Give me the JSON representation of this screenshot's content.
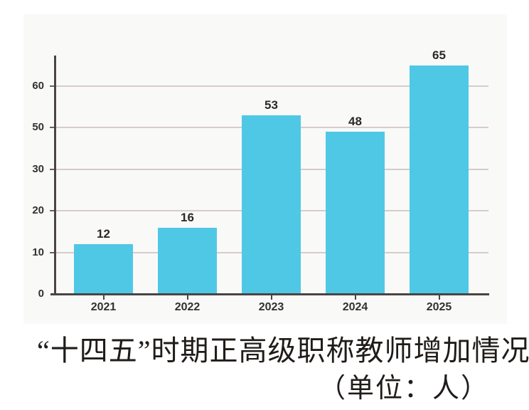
{
  "figure": {
    "kind": "printed bar chart with caption"
  },
  "style": {
    "panel_bg": "#f9f9f8",
    "bar_color": "#4fc8e6",
    "grid_color": "#d6cccb",
    "axis_color": "#4b4443",
    "tick_color": "#6b625f",
    "text_color": "#343030"
  },
  "chart_data": {
    "type": "bar",
    "categories": [
      "2021",
      "2022",
      "2023",
      "2024",
      "2025"
    ],
    "values": [
      12,
      16,
      53,
      48,
      65
    ],
    "y_tick_labels": [
      "0",
      "10",
      "20",
      "30",
      "50",
      "60"
    ],
    "y_axis_note": "printed axis skips 40; gridlines evenly spaced",
    "grid": true,
    "legend": "none",
    "title": "“十四五”时期正高级职称教师增加情况",
    "unit_label": "（单位：人）",
    "xlabel": "",
    "ylabel": ""
  }
}
